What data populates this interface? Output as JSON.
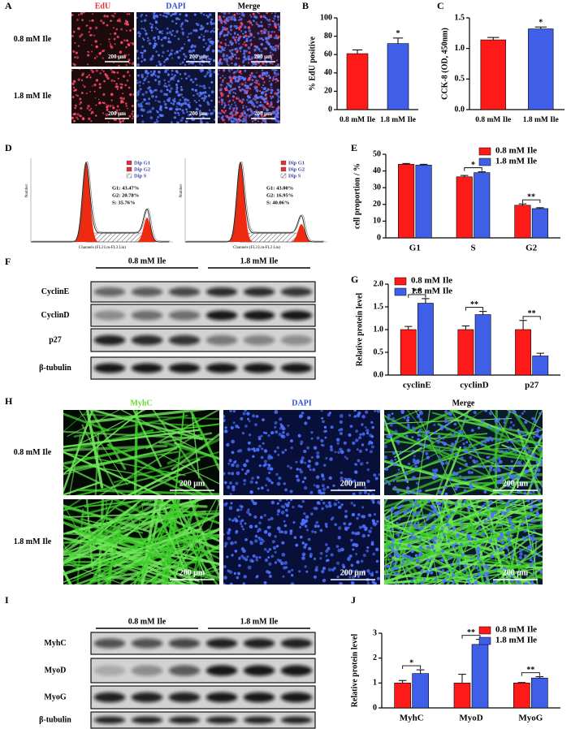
{
  "figure": {
    "panel_labels": [
      "A",
      "B",
      "C",
      "D",
      "E",
      "F",
      "G",
      "H",
      "I",
      "J"
    ],
    "panel_a": {
      "columns": [
        "EdU",
        "DAPI",
        "Merge"
      ],
      "rows": [
        "0.8 mM Ile",
        "1.8 mM Ile"
      ],
      "scale_bar": "200 μm"
    },
    "panel_d": {
      "legend": [
        "Dip G1",
        "Dip G2",
        "Dip S"
      ],
      "x_label": "Channels (FL3 Lin-FL3 Lin)",
      "y_label": "Number",
      "stats": [
        [
          "G1: 43.47%",
          "G2: 20.78%",
          "S: 35.76%"
        ],
        [
          "G1: 43.00%",
          "G2: 16.95%",
          "S: 40.06%"
        ]
      ]
    },
    "panel_f": {
      "groups": [
        "0.8 mM Ile",
        "1.8 mM Ile"
      ],
      "proteins": [
        "CyclinE",
        "CyclinD",
        "p27",
        "β-tubulin"
      ]
    },
    "panel_h": {
      "columns": [
        "MyhC",
        "DAPI",
        "Merge"
      ],
      "rows": [
        "0.8 mM Ile",
        "1.8 mM Ile"
      ],
      "scale_bar": "200 μm"
    },
    "panel_i": {
      "groups": [
        "0.8 mM Ile",
        "1.8 mM Ile"
      ],
      "proteins": [
        "MyhC",
        "MyoD",
        "MyoG",
        "β-tubulin"
      ]
    }
  },
  "chart_data": [
    {
      "type": "bar",
      "y_label": "% EdU positive",
      "categories": [
        "0.8 mM Ile",
        "1.8 mM Ile"
      ],
      "values": [
        61,
        72
      ],
      "errors": [
        4,
        6
      ],
      "colors": [
        "#ff1a1a",
        "#3f5fe8"
      ],
      "significance": [
        null,
        "*"
      ],
      "ylim": [
        0,
        100
      ],
      "yticks": [
        0,
        20,
        40,
        60,
        80,
        100
      ]
    },
    {
      "type": "bar",
      "y_label": "CCK-8 (OD, 450nm)",
      "categories": [
        "0.8 mM Ile",
        "1.8 mM Ile"
      ],
      "values": [
        1.14,
        1.32
      ],
      "errors": [
        0.04,
        0.03
      ],
      "colors": [
        "#ff1a1a",
        "#3f5fe8"
      ],
      "significance": [
        null,
        "*"
      ],
      "ylim": [
        0,
        1.5
      ],
      "yticks": [
        {
          "value": 0,
          "label": "0.0"
        },
        0.5,
        {
          "value": 1,
          "label": "1.0"
        },
        1.5
      ]
    },
    {
      "type": "bar",
      "y_label": "cell proportion / %",
      "categories": [
        "G1",
        "S",
        "G2"
      ],
      "series": [
        {
          "name": "0.8 mM Ile",
          "color": "#ff1a1a",
          "values": [
            44,
            36.5,
            19.5
          ],
          "errors": [
            0.5,
            0.8,
            0.8
          ]
        },
        {
          "name": "1.8 mM Ile",
          "color": "#3f5fe8",
          "values": [
            43.5,
            39,
            17.5
          ],
          "errors": [
            0.5,
            0.5,
            0.5
          ]
        }
      ],
      "significance": [
        null,
        "*",
        "**"
      ],
      "legend": "upper right",
      "ylim": [
        0,
        50
      ],
      "yticks": [
        0,
        10,
        20,
        30,
        40,
        50
      ]
    },
    {
      "type": "bar",
      "y_label": "Relative protein level",
      "categories": [
        "cyclinE",
        "cyclinD",
        "p27"
      ],
      "series": [
        {
          "name": "0.8 mM Ile",
          "color": "#ff1a1a",
          "values": [
            1.0,
            1.0,
            1.0
          ],
          "errors": [
            0.07,
            0.08,
            0.2
          ]
        },
        {
          "name": "1.8 mM Ile",
          "color": "#3f5fe8",
          "values": [
            1.58,
            1.33,
            0.42
          ],
          "errors": [
            0.1,
            0.07,
            0.06
          ]
        }
      ],
      "significance": [
        "**",
        "**",
        "**"
      ],
      "legend": "upper left",
      "ylim": [
        0,
        2
      ],
      "yticks": [
        {
          "value": 0,
          "label": "0.0"
        },
        0.5,
        {
          "value": 1,
          "label": "1.0"
        },
        1.5,
        {
          "value": 2,
          "label": "2.0"
        }
      ]
    },
    {
      "type": "bar",
      "y_label": "Relative protein level",
      "categories": [
        "MyhC",
        "MyoD",
        "MyoG"
      ],
      "series": [
        {
          "name": "0.8 mM Ile",
          "color": "#ff1a1a",
          "values": [
            1.0,
            1.0,
            1.0
          ],
          "errors": [
            0.1,
            0.35,
            0.02
          ]
        },
        {
          "name": "1.8 mM Ile",
          "color": "#3f5fe8",
          "values": [
            1.38,
            2.55,
            1.2
          ],
          "errors": [
            0.15,
            0.2,
            0.05
          ]
        }
      ],
      "significance": [
        "*",
        "**",
        "**"
      ],
      "legend": "upper right",
      "ylim": [
        0,
        3
      ],
      "yticks": [
        0,
        1,
        2,
        3
      ]
    }
  ]
}
